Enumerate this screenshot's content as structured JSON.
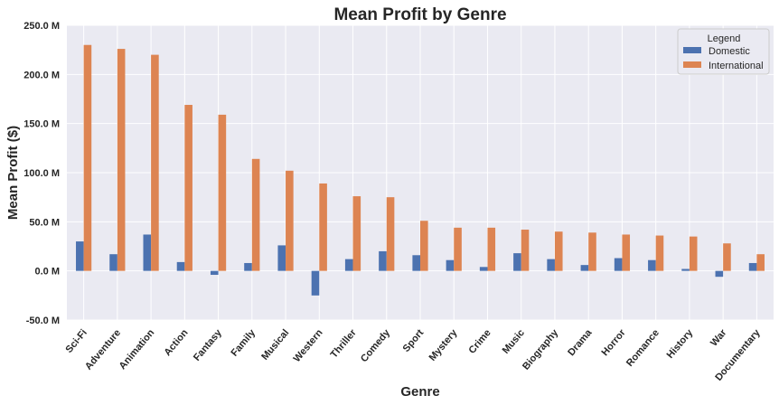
{
  "chart_data": {
    "type": "bar",
    "title": "Mean Profit by Genre",
    "xlabel": "Genre",
    "ylabel": "Mean Profit ($)",
    "ylim": [
      -50,
      250
    ],
    "yticks": [
      -50,
      0,
      50,
      100,
      150,
      200,
      250
    ],
    "ytick_labels": [
      "-50.0 M",
      "0.0 M",
      "50.0 M",
      "100.0 M",
      "150.0 M",
      "200.0 M",
      "250.0 M"
    ],
    "grid": true,
    "legend": {
      "title": "Legend",
      "position": "top-right"
    },
    "categories": [
      "Sci-Fi",
      "Adventure",
      "Animation",
      "Action",
      "Fantasy",
      "Family",
      "Musical",
      "Western",
      "Thriller",
      "Comedy",
      "Sport",
      "Mystery",
      "Crime",
      "Music",
      "Biography",
      "Drama",
      "Horror",
      "Romance",
      "History",
      "War",
      "Documentary"
    ],
    "series": [
      {
        "name": "Domestic",
        "color": "#4c72b0",
        "values": [
          30,
          17,
          37,
          9,
          -4,
          8,
          26,
          -25,
          12,
          20,
          16,
          11,
          4,
          18,
          12,
          6,
          13,
          11,
          2,
          -6,
          8
        ]
      },
      {
        "name": "International",
        "color": "#dd8452",
        "values": [
          230,
          226,
          220,
          169,
          159,
          114,
          102,
          89,
          76,
          75,
          51,
          44,
          44,
          42,
          40,
          39,
          37,
          36,
          35,
          28,
          17
        ]
      }
    ]
  }
}
